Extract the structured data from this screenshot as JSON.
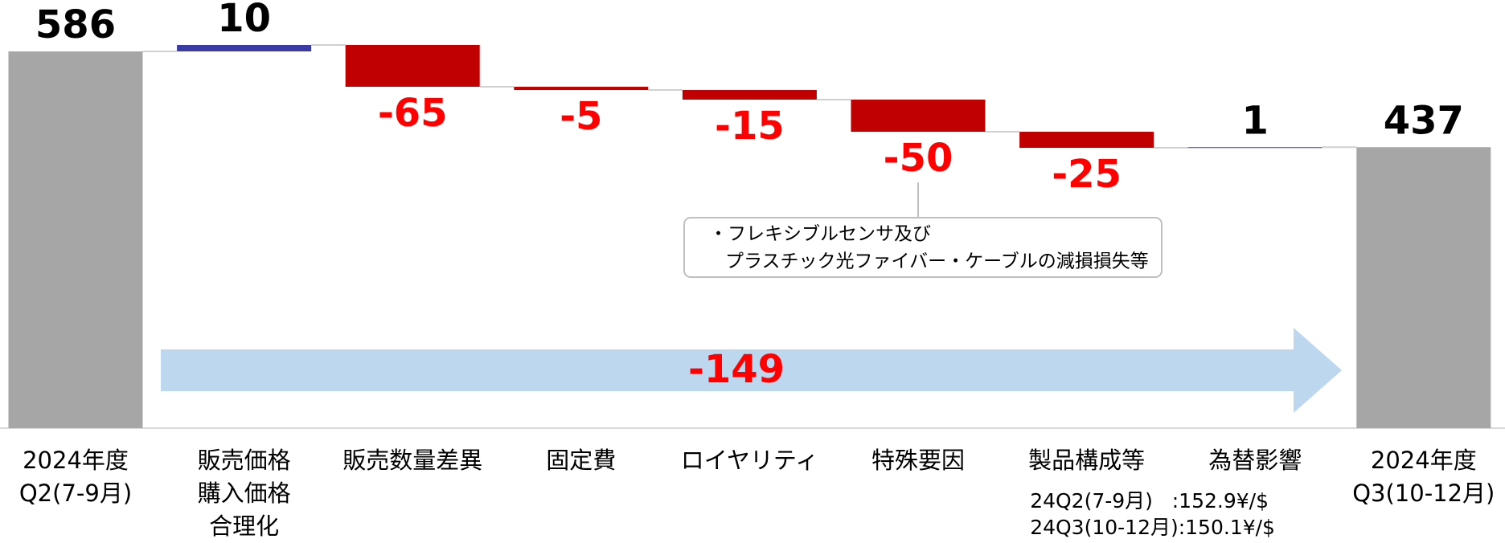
{
  "chart_data": {
    "type": "waterfall",
    "categories": [
      [
        "2024年度",
        "Q2(7-9月)"
      ],
      [
        "販売価格",
        "購入価格",
        "合理化"
      ],
      [
        "販売数量差異"
      ],
      [
        "固定費"
      ],
      [
        "ロイヤリティ"
      ],
      [
        "特殊要因"
      ],
      [
        "製品構成等"
      ],
      [
        "為替影響"
      ],
      [
        "2024年度",
        "Q3(10-12月)"
      ]
    ],
    "values": [
      586,
      10,
      -65,
      -5,
      -15,
      -50,
      -25,
      1,
      437
    ],
    "measures": [
      "absolute",
      "relative",
      "relative",
      "relative",
      "relative",
      "relative",
      "relative",
      "relative",
      "total"
    ],
    "total_color": "#a6a6a6",
    "increase_color": "#3b3ba6",
    "decrease_color": "#c00000",
    "increase_label_color": "#000000",
    "decrease_label_color": "#ff0000",
    "total_change": -149,
    "total_change_color": "#bdd7ee",
    "annotation": [
      "・フレキシブルセンサ及び",
      "プラスチック光ファイバー・ケーブルの減損損失等"
    ],
    "annotation_category": 5,
    "note": [
      "24Q2(7-9月)   :152.9¥/$",
      "24Q3(10-12月):150.1¥/$"
    ],
    "note_category": 7
  }
}
